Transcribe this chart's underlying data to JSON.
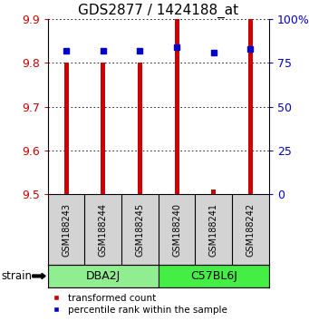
{
  "title": "GDS2877 / 1424188_at",
  "samples": [
    "GSM188243",
    "GSM188244",
    "GSM188245",
    "GSM188240",
    "GSM188241",
    "GSM188242"
  ],
  "groups": [
    {
      "name": "DBA2J",
      "color": "#90EE90",
      "indices": [
        0,
        1,
        2
      ]
    },
    {
      "name": "C57BL6J",
      "color": "#44EE44",
      "indices": [
        3,
        4,
        5
      ]
    }
  ],
  "bar_bottom": 9.5,
  "bar_tops": [
    9.8,
    9.8,
    9.8,
    9.9,
    9.51,
    9.9
  ],
  "percentile_ranks": [
    82,
    82,
    82,
    84,
    81,
    83
  ],
  "ylim": [
    9.5,
    9.9
  ],
  "yticks": [
    9.5,
    9.6,
    9.7,
    9.8,
    9.9
  ],
  "right_yticks": [
    0,
    25,
    50,
    75,
    100
  ],
  "bar_color": "#CC0000",
  "percentile_color": "#0000CC",
  "label_color_left": "#CC0000",
  "label_color_right": "#0000CC",
  "bar_width": 0.12,
  "marker_size": 5
}
